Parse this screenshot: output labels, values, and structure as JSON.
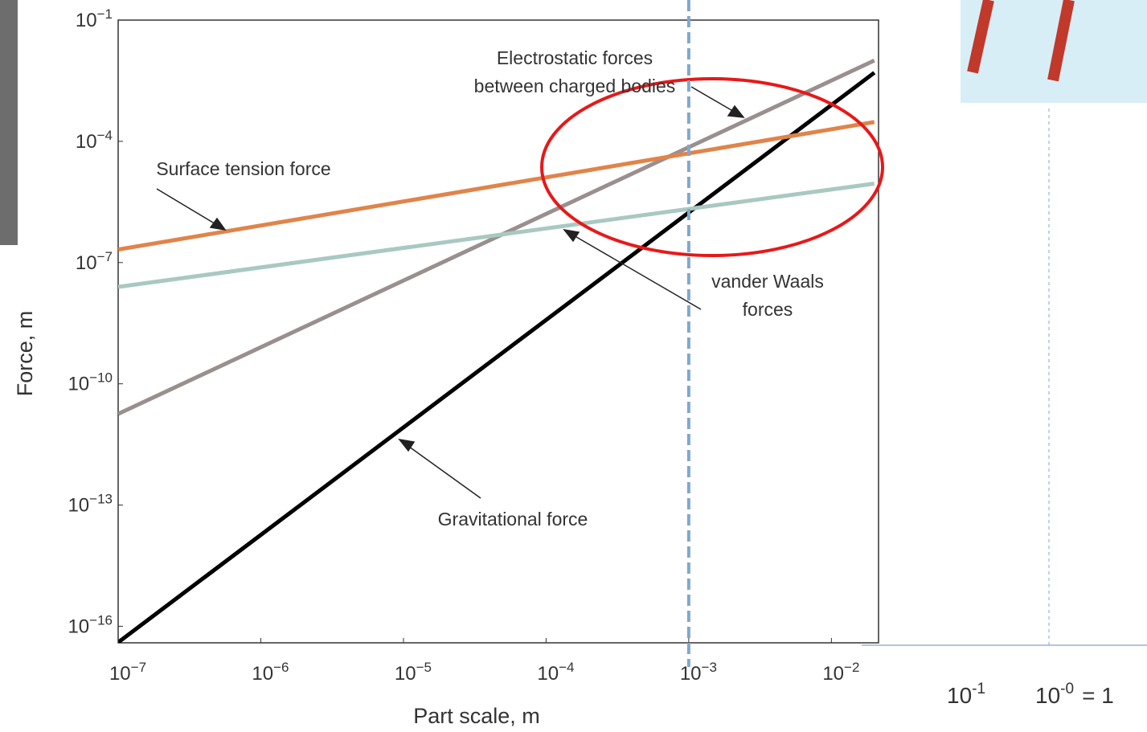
{
  "chart_data": {
    "type": "line",
    "log_x": true,
    "log_y": true,
    "x_label": "Part scale, m",
    "y_label": "Force, m",
    "x": [
      1e-07,
      0.02
    ],
    "series": [
      {
        "name": "Gravitational force",
        "color": "#000000",
        "values": [
          4e-17,
          0.005
        ]
      },
      {
        "name": "Electrostatic forces between charged bodies",
        "color": "#9a8f8f",
        "values": [
          1.8e-11,
          0.01
        ]
      },
      {
        "name": "Surface tension force",
        "color": "#e0844a",
        "values": [
          2.1e-07,
          0.0003
        ]
      },
      {
        "name": "vander Waals forces",
        "color": "#a9c9c0",
        "values": [
          2.5e-08,
          9e-06
        ]
      }
    ],
    "xlim": [
      1e-07,
      0.0214
    ],
    "ylim": [
      3.9e-17,
      0.1
    ],
    "xticks": [
      {
        "value": 1e-07,
        "label": "10−7"
      },
      {
        "value": 1e-06,
        "label": "10−6"
      },
      {
        "value": 1e-05,
        "label": "10−5"
      },
      {
        "value": 0.0001,
        "label": "10−4"
      },
      {
        "value": 0.001,
        "label": "10−3"
      },
      {
        "value": 0.01,
        "label": "10−2"
      }
    ],
    "yticks": [
      {
        "value": 1e-16,
        "label": "10−16"
      },
      {
        "value": 1e-13,
        "label": "10−13"
      },
      {
        "value": 1e-10,
        "label": "10−10"
      },
      {
        "value": 1e-07,
        "label": "10−7"
      },
      {
        "value": 0.0001,
        "label": "10−4"
      },
      {
        "value": 0.1,
        "label": "10−1"
      }
    ],
    "reference_x": 0.001,
    "extended_ticks": [
      {
        "base": "10",
        "exp": "-1"
      },
      {
        "base": "10",
        "exp": "-0",
        "suffix": "= 1"
      }
    ]
  }
}
